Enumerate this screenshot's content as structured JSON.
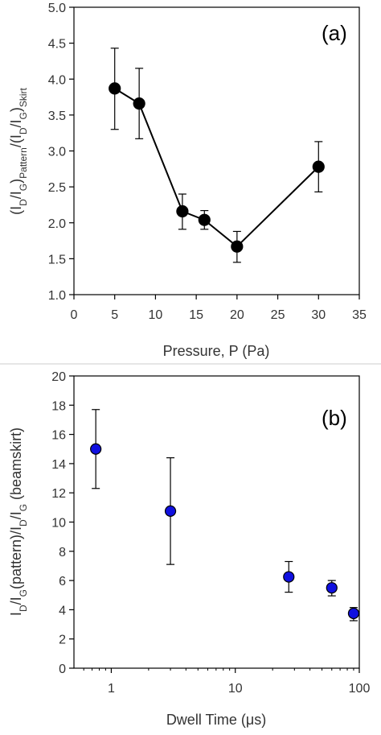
{
  "chart_data": [
    {
      "type": "line",
      "panel_label": "(a)",
      "xlabel": "Pressure, P (Pa)",
      "ylabel_parts": [
        "(I",
        "D",
        "/I",
        "G",
        ")",
        "Pattern",
        "/(I",
        "D",
        "/I",
        "G",
        ")",
        "Skirt"
      ],
      "xlim": [
        0,
        35
      ],
      "ylim": [
        1.0,
        5.0
      ],
      "xticks": [
        "0",
        "5",
        "10",
        "15",
        "20",
        "25",
        "30",
        "35"
      ],
      "yticks": [
        "1.0",
        "1.5",
        "2.0",
        "2.5",
        "3.0",
        "3.5",
        "4.0",
        "4.5",
        "5.0"
      ],
      "grid": false,
      "marker_color": "#000000",
      "line_color": "#000000",
      "series": [
        {
          "x": [
            5,
            8,
            13.3,
            16,
            20,
            30
          ],
          "y": [
            3.87,
            3.66,
            2.16,
            2.04,
            1.67,
            2.78
          ],
          "err_low": [
            3.3,
            3.17,
            1.91,
            1.91,
            1.45,
            2.43
          ],
          "err_high": [
            4.43,
            4.15,
            2.4,
            2.17,
            1.88,
            3.13
          ]
        }
      ]
    },
    {
      "type": "scatter",
      "panel_label": "(b)",
      "xlabel": "Dwell Time (μs)",
      "ylabel_parts": [
        "I",
        "D",
        "/I",
        "G",
        "(pattern)/I",
        "D",
        "/I",
        "G",
        " (beamskirt)"
      ],
      "xscale": "log",
      "xlim": [
        0.5,
        100
      ],
      "ylim": [
        0,
        20
      ],
      "xticks": [
        "1",
        "10",
        "100"
      ],
      "yticks": [
        "0",
        "2",
        "4",
        "6",
        "8",
        "10",
        "12",
        "14",
        "16",
        "18",
        "20"
      ],
      "grid": false,
      "marker_color": "#1010e0",
      "series": [
        {
          "x": [
            0.75,
            3,
            27,
            60,
            90
          ],
          "y": [
            15.0,
            10.75,
            6.25,
            5.5,
            3.75
          ],
          "err_low": [
            12.3,
            7.1,
            5.2,
            4.95,
            3.25
          ],
          "err_high": [
            17.7,
            14.4,
            7.3,
            6.0,
            4.15
          ]
        }
      ]
    }
  ]
}
